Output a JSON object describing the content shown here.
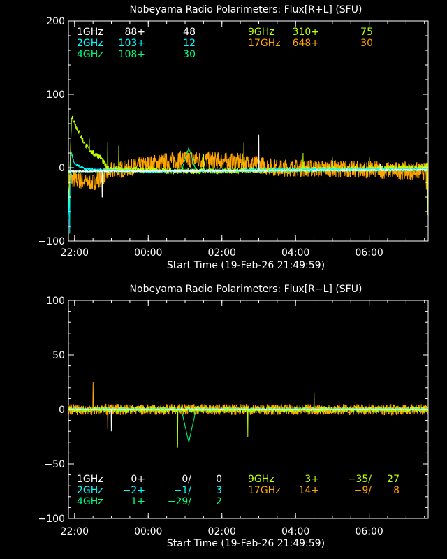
{
  "chart_data": [
    {
      "type": "line",
      "title": "Nobeyama Radio Polarimeters: Flux[R+L] (SFU)",
      "xlabel": "Start Time (19-Feb-26 21:49:59)",
      "ylabel": "",
      "xlim_hours_from_2200": [
        -0.167,
        9.6
      ],
      "ylim": [
        -100,
        200
      ],
      "yticks": [
        -100,
        0,
        100,
        200
      ],
      "xticks": [
        {
          "h": 0,
          "label": "22:00"
        },
        {
          "h": 2,
          "label": "00:00"
        },
        {
          "h": 4,
          "label": "02:00"
        },
        {
          "h": 6,
          "label": "04:00"
        },
        {
          "h": 8,
          "label": "06:00"
        }
      ],
      "legend": [
        {
          "band": "1GHz",
          "a": "88+",
          "b": "",
          "c": "48",
          "color": "#ffffff"
        },
        {
          "band": "2GHz",
          "a": "103+",
          "b": "",
          "c": "12",
          "color": "#00ffff"
        },
        {
          "band": "4GHz",
          "a": "108+",
          "b": "",
          "c": "30",
          "color": "#00ff7f"
        },
        {
          "band": "9GHz",
          "a": "310+",
          "b": "",
          "c": "75",
          "color": "#bfff00"
        },
        {
          "band": "17GHz",
          "a": "648+",
          "b": "",
          "c": "30",
          "color": "#ffa500"
        }
      ],
      "series": [
        {
          "name": "17GHz",
          "color": "#ffa500",
          "noise": 12,
          "base": [
            [
              -0.167,
              -15
            ],
            [
              0.5,
              -20
            ],
            [
              1.0,
              -5
            ],
            [
              2.0,
              5
            ],
            [
              3.0,
              12
            ],
            [
              4.5,
              8
            ],
            [
              5.5,
              0
            ],
            [
              7.5,
              -2
            ],
            [
              9.6,
              -5
            ]
          ],
          "spikes": [
            [
              9.55,
              -30
            ]
          ]
        },
        {
          "name": "9GHz",
          "color": "#bfff00",
          "noise": 4,
          "base": [
            [
              -0.167,
              -60
            ],
            [
              -0.08,
              70
            ],
            [
              0.1,
              50
            ],
            [
              0.3,
              30
            ],
            [
              0.5,
              20
            ],
            [
              0.7,
              15
            ],
            [
              0.9,
              -2
            ],
            [
              3,
              -5
            ],
            [
              6,
              -3
            ],
            [
              9.5,
              0
            ],
            [
              9.6,
              5
            ]
          ],
          "spikes": [
            [
              0.4,
              40
            ],
            [
              0.9,
              35
            ],
            [
              1.2,
              30
            ],
            [
              3.5,
              18
            ],
            [
              4.6,
              35
            ],
            [
              6.2,
              20
            ],
            [
              7.0,
              15
            ],
            [
              8.0,
              15
            ],
            [
              9.58,
              -65
            ]
          ]
        },
        {
          "name": "4GHz",
          "color": "#00ff7f",
          "noise": 1,
          "base": [
            [
              -0.167,
              -5
            ],
            [
              2.9,
              -5
            ],
            [
              3.1,
              27
            ],
            [
              3.3,
              -5
            ],
            [
              9.6,
              -3
            ]
          ],
          "spikes": []
        },
        {
          "name": "2GHz",
          "color": "#00ffff",
          "noise": 1.5,
          "base": [
            [
              -0.167,
              -70
            ],
            [
              -0.1,
              22
            ],
            [
              0,
              5
            ],
            [
              0.3,
              -2
            ],
            [
              2,
              -5
            ],
            [
              5,
              -3
            ],
            [
              9.6,
              -2
            ]
          ],
          "spikes": [
            [
              -0.13,
              -90
            ]
          ]
        },
        {
          "name": "1GHz",
          "color": "#ffffff",
          "noise": 1,
          "base": [
            [
              -0.167,
              -5
            ],
            [
              9.6,
              -3
            ]
          ],
          "spikes": [
            [
              0.75,
              -40
            ],
            [
              5.0,
              45
            ],
            [
              8.3,
              5
            ]
          ]
        }
      ]
    },
    {
      "type": "line",
      "title": "Nobeyama Radio Polarimeters: Flux[R−L] (SFU)",
      "xlabel": "Start Time (19-Feb-26 21:49:59)",
      "ylabel": "",
      "xlim_hours_from_2200": [
        -0.167,
        9.6
      ],
      "ylim": [
        -100,
        100
      ],
      "yticks": [
        -100,
        -50,
        0,
        50,
        100
      ],
      "xticks": [
        {
          "h": 0,
          "label": "22:00"
        },
        {
          "h": 2,
          "label": "00:00"
        },
        {
          "h": 4,
          "label": "02:00"
        },
        {
          "h": 6,
          "label": "04:00"
        },
        {
          "h": 8,
          "label": "06:00"
        }
      ],
      "legend": [
        {
          "band": "1GHz",
          "a": "0+",
          "b": "0/",
          "c": "0",
          "color": "#ffffff"
        },
        {
          "band": "2GHz",
          "a": "−2+",
          "b": "−1/",
          "c": "3",
          "color": "#00ffff"
        },
        {
          "band": "4GHz",
          "a": "1+",
          "b": "−29/",
          "c": "2",
          "color": "#00ff7f"
        },
        {
          "band": "9GHz",
          "a": "3+",
          "b": "−35/",
          "c": "27",
          "color": "#bfff00"
        },
        {
          "band": "17GHz",
          "a": "14+",
          "b": "−9/",
          "c": "8",
          "color": "#ffa500"
        }
      ],
      "series": [
        {
          "name": "17GHz",
          "color": "#ffa500",
          "noise": 5,
          "base": [
            [
              -0.167,
              0
            ],
            [
              9.6,
              0
            ]
          ],
          "spikes": [
            [
              0.5,
              25
            ],
            [
              0.9,
              -18
            ]
          ]
        },
        {
          "name": "9GHz",
          "color": "#bfff00",
          "noise": 2.5,
          "base": [
            [
              -0.167,
              0
            ],
            [
              9.6,
              0
            ]
          ],
          "spikes": [
            [
              2.8,
              -35
            ],
            [
              4.7,
              -25
            ],
            [
              6.5,
              15
            ]
          ]
        },
        {
          "name": "4GHz",
          "color": "#00ff7f",
          "noise": 0.5,
          "base": [
            [
              -0.167,
              0
            ],
            [
              2.9,
              0
            ],
            [
              3.1,
              -30
            ],
            [
              3.3,
              0
            ],
            [
              9.6,
              0
            ]
          ],
          "spikes": []
        },
        {
          "name": "2GHz",
          "color": "#00ffff",
          "noise": 0.5,
          "base": [
            [
              -0.167,
              0
            ],
            [
              9.6,
              0
            ]
          ],
          "spikes": []
        },
        {
          "name": "1GHz",
          "color": "#ffffff",
          "noise": 0.3,
          "base": [
            [
              -0.167,
              0
            ],
            [
              9.6,
              0
            ]
          ],
          "spikes": [
            [
              1.0,
              -20
            ]
          ]
        }
      ]
    }
  ]
}
